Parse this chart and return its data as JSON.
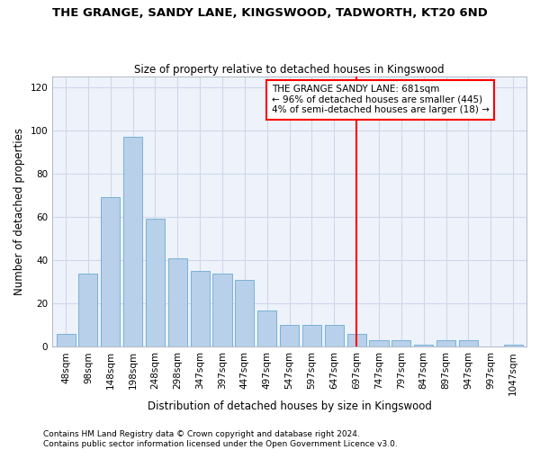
{
  "title": "THE GRANGE, SANDY LANE, KINGSWOOD, TADWORTH, KT20 6ND",
  "subtitle": "Size of property relative to detached houses in Kingswood",
  "xlabel": "Distribution of detached houses by size in Kingswood",
  "ylabel": "Number of detached properties",
  "bar_labels": [
    "48sqm",
    "98sqm",
    "148sqm",
    "198sqm",
    "248sqm",
    "298sqm",
    "347sqm",
    "397sqm",
    "447sqm",
    "497sqm",
    "547sqm",
    "597sqm",
    "647sqm",
    "697sqm",
    "747sqm",
    "797sqm",
    "847sqm",
    "897sqm",
    "947sqm",
    "997sqm",
    "1047sqm"
  ],
  "bar_values": [
    6,
    34,
    69,
    97,
    59,
    41,
    35,
    34,
    31,
    17,
    10,
    10,
    10,
    6,
    3,
    3,
    1,
    3,
    3,
    0,
    1
  ],
  "bar_color": "#b8d0ea",
  "bar_edgecolor": "#6aaad4",
  "vline_x_index": 13.0,
  "vline_color": "red",
  "annotation_text": "THE GRANGE SANDY LANE: 681sqm\n← 96% of detached houses are smaller (445)\n4% of semi-detached houses are larger (18) →",
  "annotation_box_color": "white",
  "annotation_box_edgecolor": "red",
  "ylim": [
    0,
    125
  ],
  "yticks": [
    0,
    20,
    40,
    60,
    80,
    100,
    120
  ],
  "grid_color": "#cdd8ea",
  "bg_color": "#eef2fa",
  "footer": "Contains HM Land Registry data © Crown copyright and database right 2024.\nContains public sector information licensed under the Open Government Licence v3.0.",
  "title_fontsize": 9.5,
  "subtitle_fontsize": 8.5,
  "xlabel_fontsize": 8.5,
  "ylabel_fontsize": 8.5,
  "tick_fontsize": 7.5,
  "annotation_fontsize": 7.5,
  "footer_fontsize": 6.5
}
